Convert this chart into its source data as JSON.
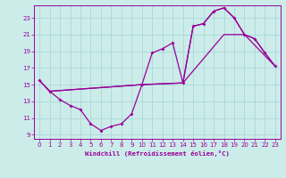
{
  "xlabel": "Windchill (Refroidissement éolien,°C)",
  "background_color": "#ccecea",
  "line_color": "#990099",
  "grid_color": "#aad8d8",
  "xlim": [
    -0.5,
    23.5
  ],
  "ylim": [
    8.5,
    24.5
  ],
  "xticks": [
    0,
    1,
    2,
    3,
    4,
    5,
    6,
    7,
    8,
    9,
    10,
    11,
    12,
    13,
    14,
    15,
    16,
    17,
    18,
    19,
    20,
    21,
    22,
    23
  ],
  "yticks": [
    9,
    11,
    13,
    15,
    17,
    19,
    21,
    23
  ],
  "curve_with_markers_x": [
    0,
    1,
    2,
    3,
    4,
    5,
    6,
    7,
    8,
    9,
    10,
    11,
    12,
    13,
    14,
    15,
    16,
    17,
    18,
    19,
    20,
    21,
    22,
    23
  ],
  "curve_with_markers_y": [
    15.5,
    14.2,
    13.2,
    12.5,
    12.0,
    10.3,
    9.5,
    10.0,
    10.3,
    11.5,
    15.0,
    18.8,
    19.3,
    20.0,
    15.2,
    22.0,
    22.3,
    23.8,
    24.2,
    23.0,
    21.0,
    20.5,
    18.8,
    17.2
  ],
  "upper_line_x": [
    0,
    1,
    10,
    14,
    15,
    16,
    17,
    18,
    19,
    20,
    21,
    22,
    23
  ],
  "upper_line_y": [
    15.5,
    14.2,
    15.0,
    15.2,
    22.0,
    22.3,
    23.8,
    24.2,
    23.0,
    21.0,
    20.5,
    18.8,
    17.2
  ],
  "lower_line_x": [
    0,
    1,
    10,
    14,
    18,
    20,
    23
  ],
  "lower_line_y": [
    15.5,
    14.2,
    15.0,
    15.2,
    21.0,
    21.0,
    17.2
  ]
}
